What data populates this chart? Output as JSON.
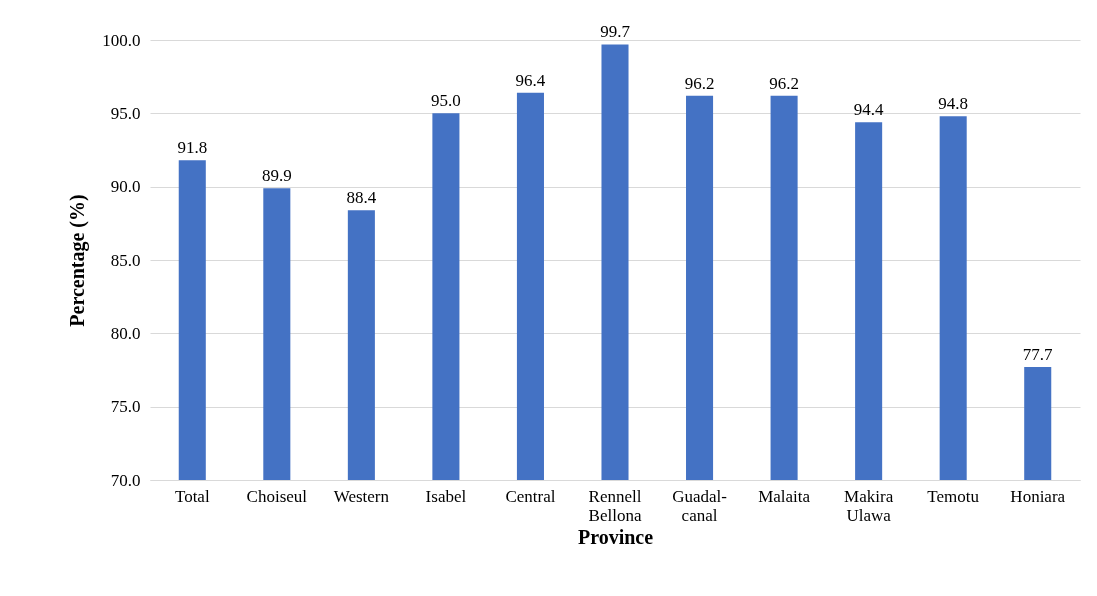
{
  "chart_data": {
    "type": "bar",
    "xlabel": "Province",
    "ylabel": "Percentage (%)",
    "categories": [
      "Total",
      "Choiseul",
      "Western",
      "Isabel",
      "Central",
      "Rennell\nBellona",
      "Guadal-\ncanal",
      "Malaita",
      "Makira\nUlawa",
      "Temotu",
      "Honiara"
    ],
    "values": [
      91.8,
      89.9,
      88.4,
      95.0,
      96.4,
      99.7,
      96.2,
      96.2,
      94.4,
      94.8,
      77.7
    ],
    "value_labels": [
      "91.8",
      "89.9",
      "88.4",
      "95.0",
      "96.4",
      "99.7",
      "96.2",
      "96.2",
      "94.4",
      "94.8",
      "77.7"
    ],
    "color": "#4472c4",
    "ylim": [
      70,
      100
    ],
    "yticks": [
      {
        "value": 70,
        "label": "70.0"
      },
      {
        "value": 75,
        "label": "75.0"
      },
      {
        "value": 80,
        "label": "80.0"
      },
      {
        "value": 85,
        "label": "85.0"
      },
      {
        "value": 90,
        "label": "90.0"
      },
      {
        "value": 95,
        "label": "95.0"
      },
      {
        "value": 100,
        "label": "100.0"
      }
    ],
    "grid": "y"
  }
}
